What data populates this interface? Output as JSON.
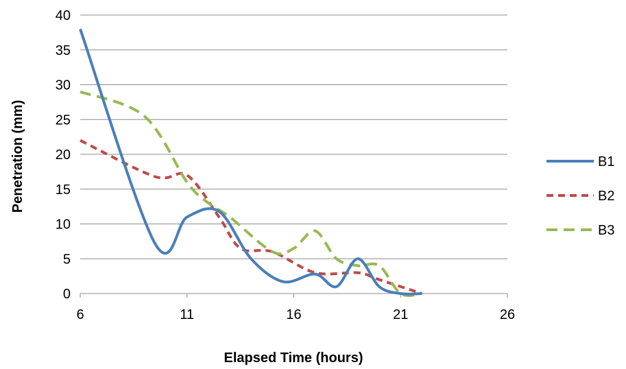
{
  "chart_data": {
    "type": "line",
    "xlabel": "Elapsed Time (hours)",
    "ylabel": "Penetration (mm)",
    "xlim": [
      6,
      26
    ],
    "ylim": [
      0,
      40
    ],
    "xticks": [
      6,
      11,
      16,
      21,
      26
    ],
    "yticks": [
      0,
      5,
      10,
      15,
      20,
      25,
      30,
      35,
      40
    ],
    "grid": "horizontal",
    "legend_position": "right",
    "smooth": true,
    "series": [
      {
        "name": "B1",
        "color": "#4a7ebb",
        "dash": "solid",
        "points": [
          [
            6,
            38
          ],
          [
            9.5,
            7.2
          ],
          [
            11,
            11
          ],
          [
            12.5,
            11.8
          ],
          [
            14,
            5
          ],
          [
            15.5,
            1.7
          ],
          [
            17,
            2.8
          ],
          [
            18,
            1
          ],
          [
            19,
            5
          ],
          [
            20,
            1
          ],
          [
            21,
            0
          ],
          [
            22,
            0
          ]
        ]
      },
      {
        "name": "B2",
        "color": "#be4b48",
        "dash": "dashed",
        "points": [
          [
            6,
            22
          ],
          [
            9.5,
            16.8
          ],
          [
            11,
            17
          ],
          [
            12.5,
            11
          ],
          [
            13.5,
            6.5
          ],
          [
            15,
            6
          ],
          [
            17,
            3
          ],
          [
            19,
            3
          ],
          [
            20,
            2
          ],
          [
            22,
            0
          ]
        ]
      },
      {
        "name": "B3",
        "color": "#98b954",
        "dash": "dashed",
        "points": [
          [
            6,
            29
          ],
          [
            9,
            25.5
          ],
          [
            11,
            16
          ],
          [
            12,
            13
          ],
          [
            13,
            11
          ],
          [
            15,
            6
          ],
          [
            16,
            6.5
          ],
          [
            17,
            9
          ],
          [
            18,
            5
          ],
          [
            19,
            4
          ],
          [
            20,
            4
          ],
          [
            21,
            0
          ],
          [
            22,
            0
          ]
        ]
      }
    ]
  }
}
